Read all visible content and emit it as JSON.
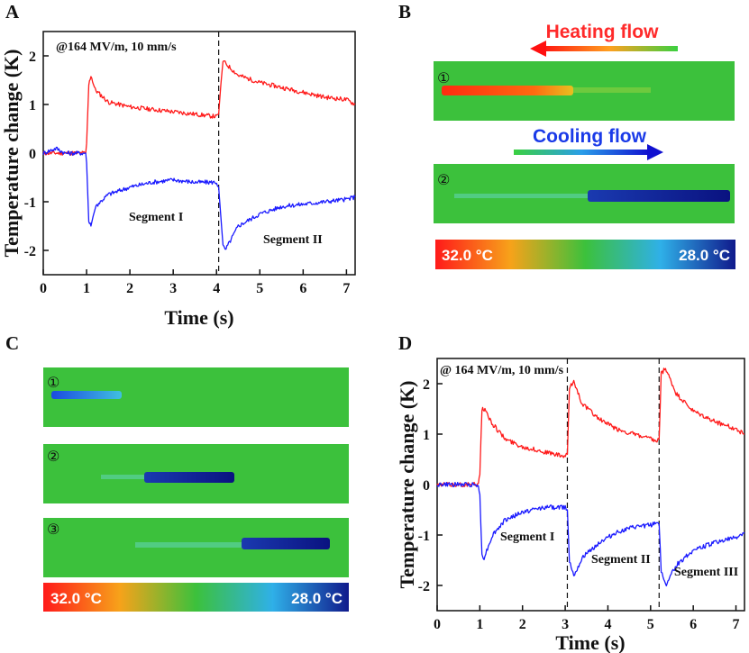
{
  "panels": {
    "a": {
      "letter": "A",
      "annotation": "@164 MV/m, 10 mm/s",
      "segment_labels": [
        "Segment I",
        "Segment II"
      ]
    },
    "b": {
      "letter": "B",
      "heating_label": "Heating flow",
      "cooling_label": "Cooling flow",
      "strip_numbers": [
        "①",
        "②"
      ],
      "colorbar_left": "32.0 °C",
      "colorbar_right": "28.0 °C"
    },
    "c": {
      "letter": "C",
      "strip_numbers": [
        "①",
        "②",
        "③"
      ],
      "colorbar_left": "32.0 °C",
      "colorbar_right": "28.0 °C"
    },
    "d": {
      "letter": "D",
      "annotation": "@ 164 MV/m, 10 mm/s",
      "segment_labels": [
        "Segment I",
        "Segment II",
        "Segment III"
      ]
    }
  },
  "colors": {
    "heating": "#ff1a1a",
    "cooling": "#1a1aff",
    "field": "#3cc13c",
    "hot_spot": "#ff3a10",
    "cold_spot": "#0a1a90"
  },
  "chart_data": [
    {
      "type": "line",
      "panel": "A",
      "title": "",
      "xlabel": "Time (s)",
      "ylabel": "Temperature change (K)",
      "xlim": [
        0,
        7.2
      ],
      "ylim": [
        -2.5,
        2.5
      ],
      "xticks": [
        0,
        1,
        2,
        3,
        4,
        5,
        6,
        7
      ],
      "yticks": [
        -2,
        -1,
        0,
        1,
        2
      ],
      "dividers_x": [
        4.05
      ],
      "series": [
        {
          "name": "Heating",
          "color": "#ff1a1a",
          "x": [
            0,
            0.5,
            0.9,
            0.98,
            1.0,
            1.05,
            1.1,
            1.2,
            1.5,
            2.0,
            2.5,
            3.0,
            3.5,
            4.0,
            4.05,
            4.1,
            4.15,
            4.2,
            4.5,
            5.0,
            5.5,
            6.0,
            6.5,
            7.0,
            7.2
          ],
          "y": [
            0.0,
            0.0,
            0.0,
            0.0,
            0.2,
            1.4,
            1.6,
            1.3,
            1.05,
            0.95,
            0.9,
            0.85,
            0.8,
            0.75,
            0.8,
            1.4,
            1.9,
            1.85,
            1.6,
            1.45,
            1.35,
            1.25,
            1.15,
            1.1,
            1.0
          ]
        },
        {
          "name": "Cooling",
          "color": "#1a1aff",
          "x": [
            0,
            0.3,
            0.5,
            0.9,
            0.98,
            1.0,
            1.05,
            1.1,
            1.2,
            1.5,
            2.0,
            2.5,
            3.0,
            3.5,
            4.0,
            4.05,
            4.1,
            4.15,
            4.2,
            4.5,
            5.0,
            5.5,
            6.0,
            6.5,
            7.0,
            7.2
          ],
          "y": [
            0.0,
            0.1,
            0.0,
            0.0,
            0.0,
            -0.2,
            -1.4,
            -1.5,
            -1.1,
            -0.85,
            -0.7,
            -0.6,
            -0.55,
            -0.6,
            -0.6,
            -0.7,
            -1.3,
            -1.9,
            -2.0,
            -1.5,
            -1.25,
            -1.1,
            -1.05,
            -1.0,
            -0.95,
            -0.9
          ]
        }
      ]
    },
    {
      "type": "line",
      "panel": "D",
      "title": "",
      "xlabel": "Time (s)",
      "ylabel": "Temperature change (K)",
      "xlim": [
        0,
        7.2
      ],
      "ylim": [
        -2.5,
        2.5
      ],
      "xticks": [
        0,
        1,
        2,
        3,
        4,
        5,
        6,
        7
      ],
      "yticks": [
        -2,
        -1,
        0,
        1,
        2
      ],
      "dividers_x": [
        3.05,
        5.2
      ],
      "series": [
        {
          "name": "Heating",
          "color": "#ff1a1a",
          "x": [
            0,
            0.5,
            0.95,
            1.0,
            1.05,
            1.1,
            1.3,
            1.6,
            2.0,
            2.5,
            3.0,
            3.05,
            3.1,
            3.2,
            3.4,
            3.8,
            4.2,
            4.6,
            5.0,
            5.15,
            5.2,
            5.25,
            5.35,
            5.6,
            6.0,
            6.5,
            7.0,
            7.2
          ],
          "y": [
            0.0,
            0.0,
            0.0,
            0.2,
            1.5,
            1.5,
            1.2,
            0.9,
            0.75,
            0.65,
            0.55,
            0.6,
            1.9,
            2.05,
            1.6,
            1.3,
            1.1,
            1.0,
            0.9,
            0.85,
            0.9,
            2.2,
            2.3,
            1.8,
            1.45,
            1.25,
            1.1,
            1.0
          ]
        },
        {
          "name": "Cooling",
          "color": "#1a1aff",
          "x": [
            0,
            0.5,
            0.95,
            1.0,
            1.05,
            1.1,
            1.3,
            1.6,
            2.0,
            2.5,
            3.0,
            3.05,
            3.1,
            3.2,
            3.4,
            3.8,
            4.2,
            4.6,
            5.0,
            5.15,
            5.2,
            5.25,
            5.35,
            5.6,
            6.0,
            6.5,
            7.0,
            7.2
          ],
          "y": [
            0.0,
            0.0,
            0.0,
            -0.2,
            -1.4,
            -1.45,
            -1.0,
            -0.7,
            -0.55,
            -0.45,
            -0.45,
            -0.5,
            -1.5,
            -1.8,
            -1.45,
            -1.15,
            -0.95,
            -0.85,
            -0.8,
            -0.75,
            -0.8,
            -1.7,
            -2.0,
            -1.6,
            -1.3,
            -1.15,
            -1.05,
            -0.95
          ]
        }
      ]
    }
  ]
}
